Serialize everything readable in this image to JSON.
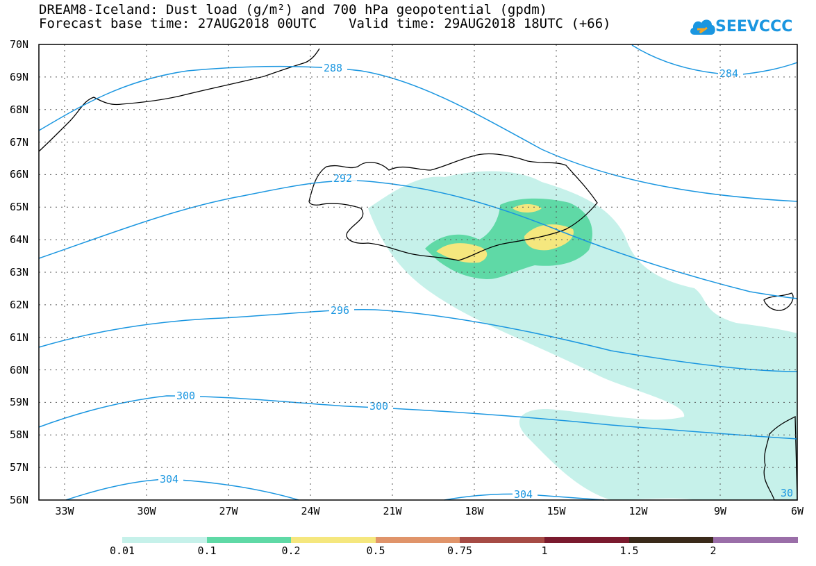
{
  "header": {
    "title_line1": "DREAM8-Iceland: Dust load (g/m²) and 700 hPa geopotential (gpdm)",
    "title_line2": "Forecast base time: 27AUG2018 00UTC    Valid time: 29AUG2018 18UTC (+66)",
    "logo_text": "SEEVCCC"
  },
  "map": {
    "lat_labels": [
      "70N",
      "69N",
      "68N",
      "67N",
      "66N",
      "65N",
      "64N",
      "63N",
      "62N",
      "61N",
      "60N",
      "59N",
      "58N",
      "57N",
      "56N"
    ],
    "lon_labels": [
      "33W",
      "30W",
      "27W",
      "24W",
      "21W",
      "18W",
      "15W",
      "12W",
      "9W",
      "6W"
    ],
    "contour_labels": [
      "288",
      "284",
      "292",
      "296",
      "300",
      "300",
      "304",
      "304",
      "30"
    ],
    "colors": {
      "contour": "#1a96e0",
      "coast": "#000000",
      "dust_001": "#c6f1ea",
      "dust_01": "#5fd9a6",
      "dust_02": "#f5e77e"
    }
  },
  "legend": {
    "labels": [
      "0.01",
      "0.1",
      "0.2",
      "0.5",
      "0.75",
      "1",
      "1.5",
      "2"
    ],
    "colors": [
      "#c6f1ea",
      "#5fd9a6",
      "#f5e77e",
      "#e0946a",
      "#a64b45",
      "#7a1a2e",
      "#3a2a1a",
      "#9a6ea8"
    ]
  }
}
